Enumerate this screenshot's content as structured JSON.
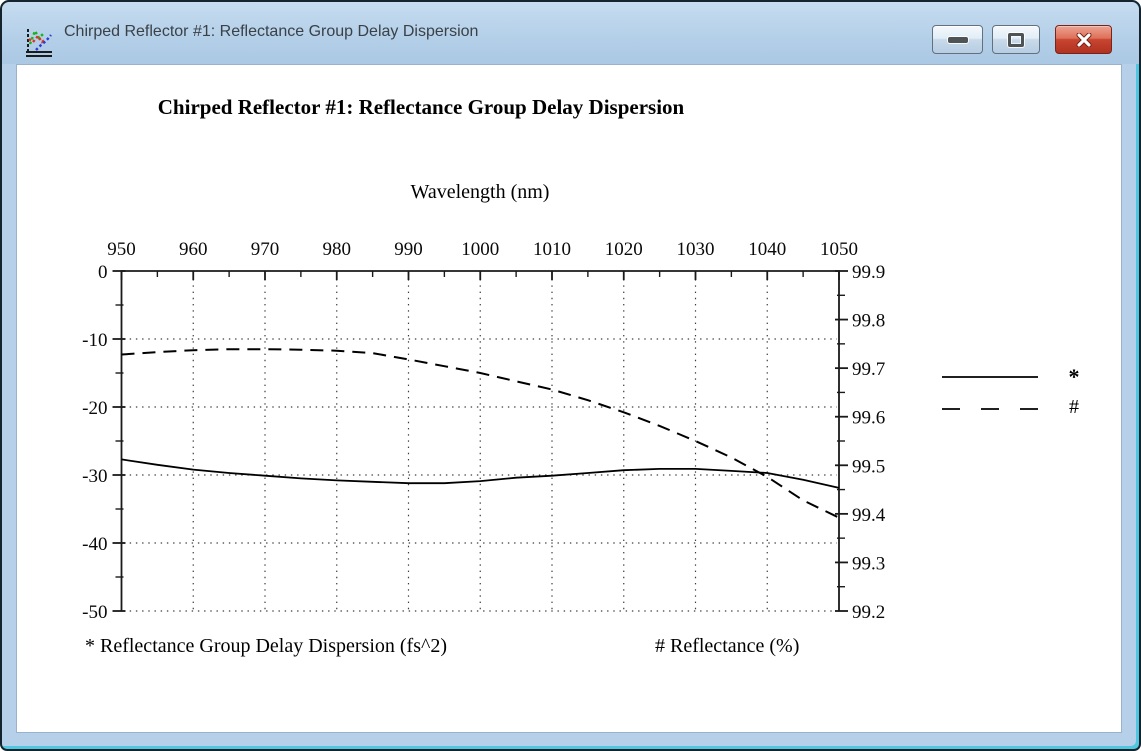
{
  "window": {
    "title": "Chirped Reflector #1: Reflectance Group Delay Dispersion",
    "icon": "chart-icon"
  },
  "chart_data": {
    "type": "line",
    "title": "Chirped Reflector #1: Reflectance Group Delay Dispersion",
    "grid": true,
    "x_axis": {
      "label": "Wavelength (nm)",
      "position": "top",
      "min": 950,
      "max": 1050,
      "minor_tick_step": 5,
      "ticks": [
        {
          "v": 950,
          "label": "950"
        },
        {
          "v": 960,
          "label": "960"
        },
        {
          "v": 970,
          "label": "970"
        },
        {
          "v": 980,
          "label": "980"
        },
        {
          "v": 990,
          "label": "990"
        },
        {
          "v": 1000,
          "label": "1000"
        },
        {
          "v": 1010,
          "label": "1010"
        },
        {
          "v": 1020,
          "label": "1020"
        },
        {
          "v": 1030,
          "label": "1030"
        },
        {
          "v": 1040,
          "label": "1040"
        },
        {
          "v": 1050,
          "label": "1050"
        }
      ]
    },
    "left_axis": {
      "caption": "* Reflectance Group Delay Dispersion (fs^2)",
      "min": -50,
      "max": 0,
      "minor_tick_step": 5,
      "ticks": [
        {
          "v": 0,
          "label": "0"
        },
        {
          "v": -10,
          "label": "-10"
        },
        {
          "v": -20,
          "label": "-20"
        },
        {
          "v": -30,
          "label": "-30"
        },
        {
          "v": -40,
          "label": "-40"
        },
        {
          "v": -50,
          "label": "-50"
        }
      ]
    },
    "right_axis": {
      "caption": "# Reflectance (%)",
      "min": 99.2,
      "max": 99.9,
      "minor_tick_step": 0.05,
      "ticks": [
        {
          "v": 99.9,
          "label": "99.9"
        },
        {
          "v": 99.8,
          "label": "99.8"
        },
        {
          "v": 99.7,
          "label": "99.7"
        },
        {
          "v": 99.6,
          "label": "99.6"
        },
        {
          "v": 99.5,
          "label": "99.5"
        },
        {
          "v": 99.4,
          "label": "99.4"
        },
        {
          "v": 99.3,
          "label": "99.3"
        },
        {
          "v": 99.2,
          "label": "99.2"
        }
      ]
    },
    "legend": {
      "position": "right-outside",
      "entries": [
        {
          "symbol": "*",
          "line": "solid",
          "series": "Reflectance Group Delay Dispersion (fs^2)"
        },
        {
          "symbol": "#",
          "line": "dashed",
          "series": "Reflectance (%)"
        }
      ]
    },
    "wavelengths_nm": [
      950,
      955,
      960,
      965,
      970,
      975,
      980,
      985,
      990,
      995,
      1000,
      1005,
      1010,
      1015,
      1020,
      1025,
      1030,
      1035,
      1040,
      1045,
      1050
    ],
    "series": [
      {
        "name": "Reflectance Group Delay Dispersion (fs^2)",
        "symbol": "*",
        "axis": "left",
        "line": "solid",
        "values": [
          -27.7,
          -28.5,
          -29.2,
          -29.7,
          -30.1,
          -30.5,
          -30.8,
          -31.0,
          -31.2,
          -31.2,
          -30.9,
          -30.4,
          -30.1,
          -29.7,
          -29.3,
          -29.1,
          -29.1,
          -29.4,
          -29.7,
          -30.7,
          -31.9
        ]
      },
      {
        "name": "Reflectance (%)",
        "symbol": "#",
        "axis": "right",
        "line": "dashed",
        "values": [
          99.728,
          99.733,
          99.737,
          99.739,
          99.739,
          99.738,
          99.736,
          99.731,
          99.718,
          99.704,
          99.69,
          99.673,
          99.656,
          99.634,
          99.609,
          99.581,
          99.55,
          99.516,
          99.476,
          99.428,
          99.392
        ]
      }
    ],
    "colors": {
      "curve": "#000000",
      "grid": "#3c3c3c",
      "axis": "#1a1a1a"
    }
  }
}
